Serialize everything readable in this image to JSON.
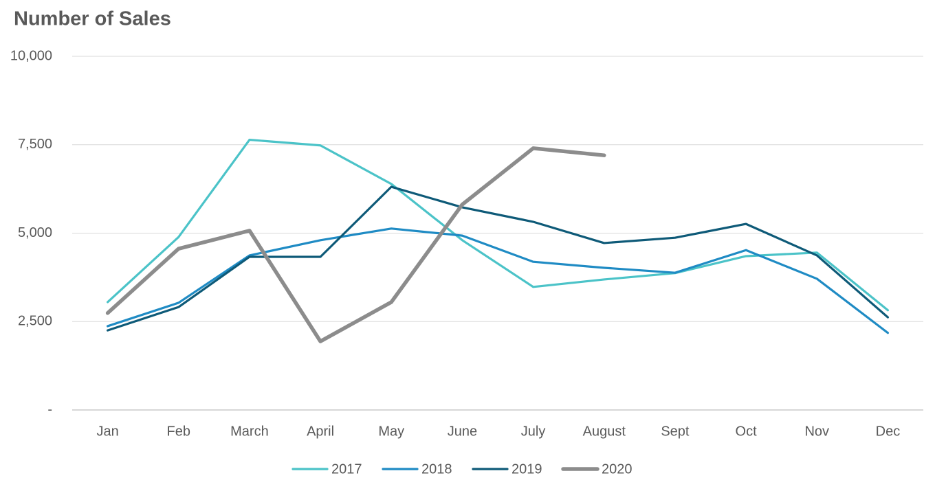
{
  "chart_data": {
    "type": "line",
    "title": "Number of Sales",
    "categories": [
      "Jan",
      "Feb",
      "March",
      "April",
      "May",
      "June",
      "July",
      "August",
      "Sept",
      "Oct",
      "Nov",
      "Dec"
    ],
    "series": [
      {
        "name": "2017",
        "color": "#4bc3c8",
        "values": [
          3050,
          4890,
          7640,
          7480,
          6390,
          4800,
          3480,
          3690,
          3870,
          4350,
          4450,
          2820
        ]
      },
      {
        "name": "2018",
        "color": "#1f8bc4",
        "values": [
          2370,
          3030,
          4370,
          4800,
          5130,
          4930,
          4190,
          4020,
          3880,
          4520,
          3710,
          2180
        ]
      },
      {
        "name": "2019",
        "color": "#0e5a78",
        "values": [
          2250,
          2910,
          4330,
          4330,
          6310,
          5730,
          5320,
          4720,
          4870,
          5260,
          4370,
          2620
        ]
      },
      {
        "name": "2020",
        "color": "#8c8c8c",
        "values": [
          2740,
          4560,
          5070,
          1940,
          3050,
          5810,
          7400,
          7200,
          null,
          null,
          null,
          null
        ]
      }
    ],
    "ylim": [
      0,
      10000
    ],
    "yticks": [
      {
        "value": 0,
        "label": "-"
      },
      {
        "value": 2500,
        "label": "2,500"
      },
      {
        "value": 5000,
        "label": "5,000"
      },
      {
        "value": 7500,
        "label": "7,500"
      },
      {
        "value": 10000,
        "label": "10,000"
      }
    ],
    "grid": true,
    "legend": "bottom"
  }
}
